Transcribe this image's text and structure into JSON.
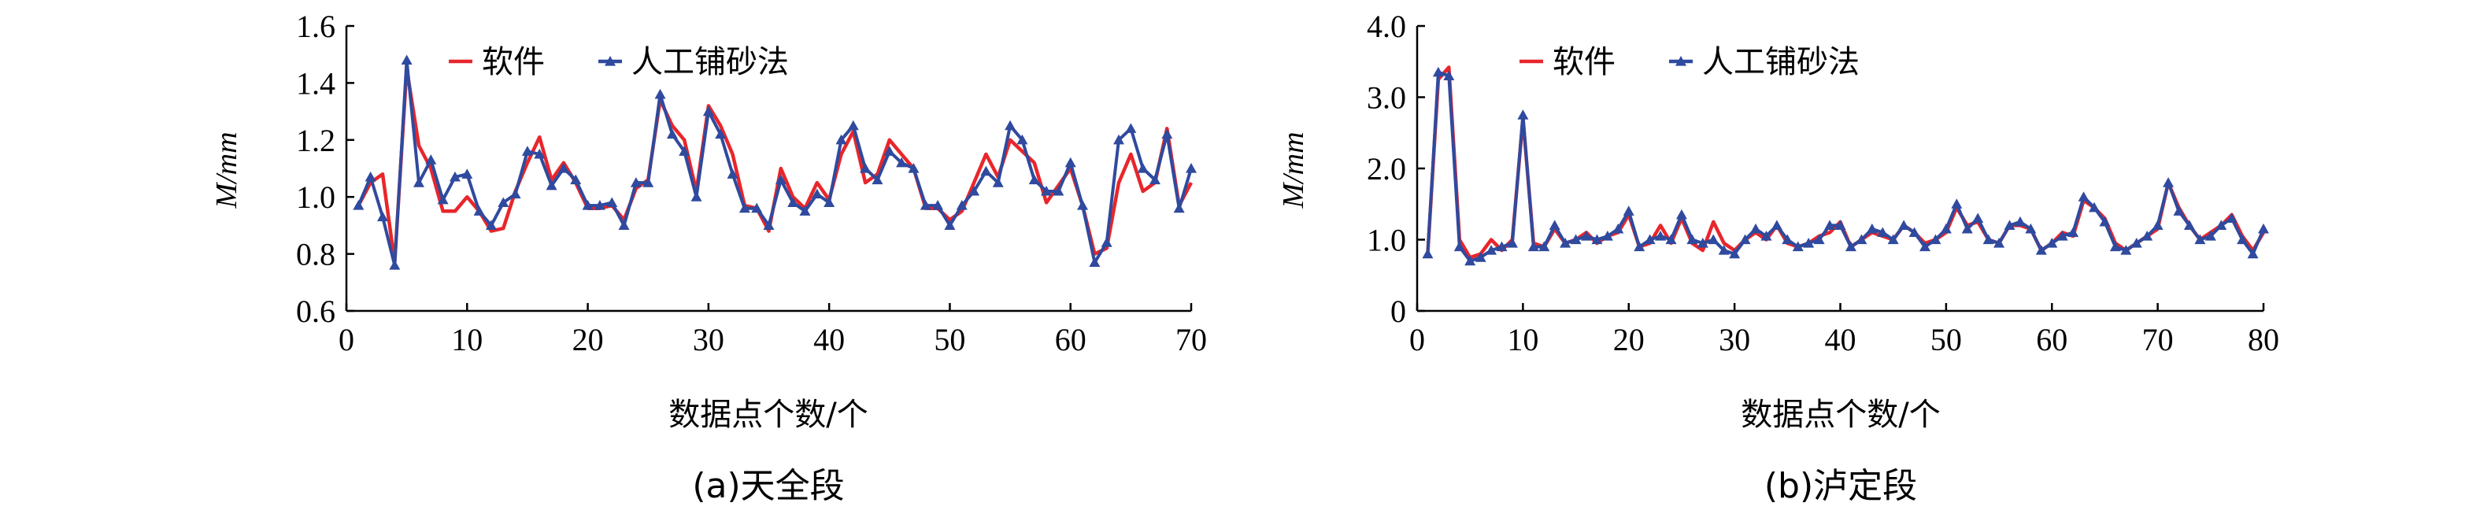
{
  "chart_data": [
    {
      "type": "line",
      "caption": "(a)天全段",
      "ylabel": "M/mm",
      "xlabel": "数据点个数/个",
      "xlim": [
        0,
        70
      ],
      "ylim": [
        0.6,
        1.6
      ],
      "xticks": [
        "0",
        "10",
        "20",
        "30",
        "40",
        "50",
        "60",
        "70"
      ],
      "yticks": [
        "0.6",
        "0.8",
        "1.0",
        "1.2",
        "1.4",
        "1.6"
      ],
      "legend_position": "top-left",
      "series": [
        {
          "name": "软件",
          "color": "#e8262b",
          "marker": "none",
          "x": [
            1,
            2,
            3,
            4,
            5,
            6,
            7,
            8,
            9,
            10,
            11,
            12,
            13,
            14,
            15,
            16,
            17,
            18,
            19,
            20,
            21,
            22,
            23,
            24,
            25,
            26,
            27,
            28,
            29,
            30,
            31,
            32,
            33,
            34,
            35,
            36,
            37,
            38,
            39,
            40,
            41,
            42,
            43,
            44,
            45,
            46,
            47,
            48,
            49,
            50,
            51,
            52,
            53,
            54,
            55,
            56,
            57,
            58,
            59,
            60,
            61,
            62,
            63,
            64,
            65,
            66,
            67,
            68,
            69,
            70
          ],
          "values": [
            0.97,
            1.05,
            1.08,
            0.77,
            1.45,
            1.18,
            1.1,
            0.95,
            0.95,
            1.0,
            0.95,
            0.88,
            0.89,
            1.02,
            1.12,
            1.21,
            1.06,
            1.12,
            1.05,
            0.96,
            0.96,
            0.97,
            0.92,
            1.03,
            1.06,
            1.34,
            1.25,
            1.2,
            1.02,
            1.32,
            1.25,
            1.15,
            0.97,
            0.96,
            0.88,
            1.1,
            1.0,
            0.96,
            1.05,
            0.99,
            1.15,
            1.23,
            1.05,
            1.08,
            1.2,
            1.15,
            1.1,
            0.96,
            0.96,
            0.92,
            0.95,
            1.05,
            1.15,
            1.07,
            1.2,
            1.16,
            1.12,
            0.98,
            1.04,
            1.1,
            0.97,
            0.8,
            0.82,
            1.05,
            1.15,
            1.02,
            1.05,
            1.24,
            0.97,
            1.05
          ]
        },
        {
          "name": "人工铺砂法",
          "color": "#2f4a9e",
          "marker": "triangle",
          "x": [
            1,
            2,
            3,
            4,
            5,
            6,
            7,
            8,
            9,
            10,
            11,
            12,
            13,
            14,
            15,
            16,
            17,
            18,
            19,
            20,
            21,
            22,
            23,
            24,
            25,
            26,
            27,
            28,
            29,
            30,
            31,
            32,
            33,
            34,
            35,
            36,
            37,
            38,
            39,
            40,
            41,
            42,
            43,
            44,
            45,
            46,
            47,
            48,
            49,
            50,
            51,
            52,
            53,
            54,
            55,
            56,
            57,
            58,
            59,
            60,
            61,
            62,
            63,
            64,
            65,
            66,
            67,
            68,
            69,
            70
          ],
          "values": [
            0.97,
            1.07,
            0.93,
            0.76,
            1.48,
            1.05,
            1.13,
            0.99,
            1.07,
            1.08,
            0.95,
            0.9,
            0.98,
            1.01,
            1.16,
            1.15,
            1.04,
            1.1,
            1.06,
            0.97,
            0.97,
            0.98,
            0.9,
            1.05,
            1.05,
            1.36,
            1.22,
            1.16,
            1.0,
            1.3,
            1.22,
            1.08,
            0.96,
            0.96,
            0.9,
            1.06,
            0.98,
            0.95,
            1.01,
            0.98,
            1.2,
            1.25,
            1.1,
            1.06,
            1.16,
            1.12,
            1.1,
            0.97,
            0.97,
            0.9,
            0.97,
            1.02,
            1.09,
            1.05,
            1.25,
            1.2,
            1.06,
            1.02,
            1.02,
            1.12,
            0.97,
            0.77,
            0.84,
            1.2,
            1.24,
            1.1,
            1.06,
            1.22,
            0.96,
            1.1
          ]
        }
      ]
    },
    {
      "type": "line",
      "caption": "(b)泸定段",
      "ylabel": "M/mm",
      "xlabel": "数据点个数/个",
      "xlim": [
        0,
        80
      ],
      "ylim": [
        0,
        4.0
      ],
      "xticks": [
        "0",
        "10",
        "20",
        "30",
        "40",
        "50",
        "60",
        "70",
        "80"
      ],
      "yticks": [
        "0",
        "1.0",
        "2.0",
        "3.0",
        "4.0"
      ],
      "legend_position": "top-left",
      "series": [
        {
          "name": "软件",
          "color": "#e8262b",
          "marker": "none",
          "x": [
            1,
            2,
            3,
            4,
            5,
            6,
            7,
            8,
            9,
            10,
            11,
            12,
            13,
            14,
            15,
            16,
            17,
            18,
            19,
            20,
            21,
            22,
            23,
            24,
            25,
            26,
            27,
            28,
            29,
            30,
            31,
            32,
            33,
            34,
            35,
            36,
            37,
            38,
            39,
            40,
            41,
            42,
            43,
            44,
            45,
            46,
            47,
            48,
            49,
            50,
            51,
            52,
            53,
            54,
            55,
            56,
            57,
            58,
            59,
            60,
            61,
            62,
            63,
            64,
            65,
            66,
            67,
            68,
            69,
            70,
            71,
            72,
            73,
            74,
            75,
            76,
            77,
            78,
            79,
            80
          ],
          "values": [
            0.8,
            3.25,
            3.42,
            1.0,
            0.75,
            0.8,
            1.0,
            0.85,
            1.0,
            2.7,
            0.95,
            0.9,
            1.15,
            0.95,
            1.0,
            1.1,
            0.95,
            1.05,
            1.1,
            1.35,
            0.9,
            0.95,
            1.2,
            0.95,
            1.3,
            0.95,
            0.85,
            1.25,
            0.95,
            0.85,
            1.0,
            1.1,
            1.0,
            1.2,
            0.95,
            0.9,
            0.95,
            1.05,
            1.1,
            1.25,
            0.9,
            1.0,
            1.1,
            1.05,
            1.0,
            1.2,
            1.1,
            0.95,
            1.0,
            1.1,
            1.45,
            1.2,
            1.25,
            1.0,
            0.95,
            1.2,
            1.2,
            1.15,
            0.85,
            0.95,
            1.1,
            1.05,
            1.55,
            1.45,
            1.3,
            0.95,
            0.85,
            0.95,
            1.05,
            1.15,
            1.8,
            1.45,
            1.2,
            1.0,
            1.1,
            1.2,
            1.35,
            1.05,
            0.85,
            1.1
          ]
        },
        {
          "name": "人工铺砂法",
          "color": "#2f4a9e",
          "marker": "triangle",
          "x": [
            1,
            2,
            3,
            4,
            5,
            6,
            7,
            8,
            9,
            10,
            11,
            12,
            13,
            14,
            15,
            16,
            17,
            18,
            19,
            20,
            21,
            22,
            23,
            24,
            25,
            26,
            27,
            28,
            29,
            30,
            31,
            32,
            33,
            34,
            35,
            36,
            37,
            38,
            39,
            40,
            41,
            42,
            43,
            44,
            45,
            46,
            47,
            48,
            49,
            50,
            51,
            52,
            53,
            54,
            55,
            56,
            57,
            58,
            59,
            60,
            61,
            62,
            63,
            64,
            65,
            66,
            67,
            68,
            69,
            70,
            71,
            72,
            73,
            74,
            75,
            76,
            77,
            78,
            79,
            80
          ],
          "values": [
            0.8,
            3.35,
            3.3,
            0.9,
            0.7,
            0.75,
            0.85,
            0.9,
            0.95,
            2.75,
            0.9,
            0.9,
            1.2,
            0.95,
            1.0,
            1.05,
            1.0,
            1.05,
            1.15,
            1.4,
            0.9,
            1.0,
            1.05,
            1.0,
            1.35,
            1.0,
            0.95,
            1.0,
            0.85,
            0.8,
            1.0,
            1.15,
            1.05,
            1.2,
            1.0,
            0.9,
            0.95,
            1.0,
            1.2,
            1.2,
            0.9,
            1.0,
            1.15,
            1.1,
            1.0,
            1.2,
            1.1,
            0.9,
            1.0,
            1.15,
            1.5,
            1.15,
            1.3,
            1.0,
            0.95,
            1.2,
            1.25,
            1.15,
            0.85,
            0.95,
            1.05,
            1.1,
            1.6,
            1.45,
            1.25,
            0.9,
            0.85,
            0.95,
            1.05,
            1.2,
            1.8,
            1.4,
            1.2,
            1.0,
            1.05,
            1.2,
            1.3,
            1.0,
            0.8,
            1.15
          ]
        }
      ]
    }
  ]
}
